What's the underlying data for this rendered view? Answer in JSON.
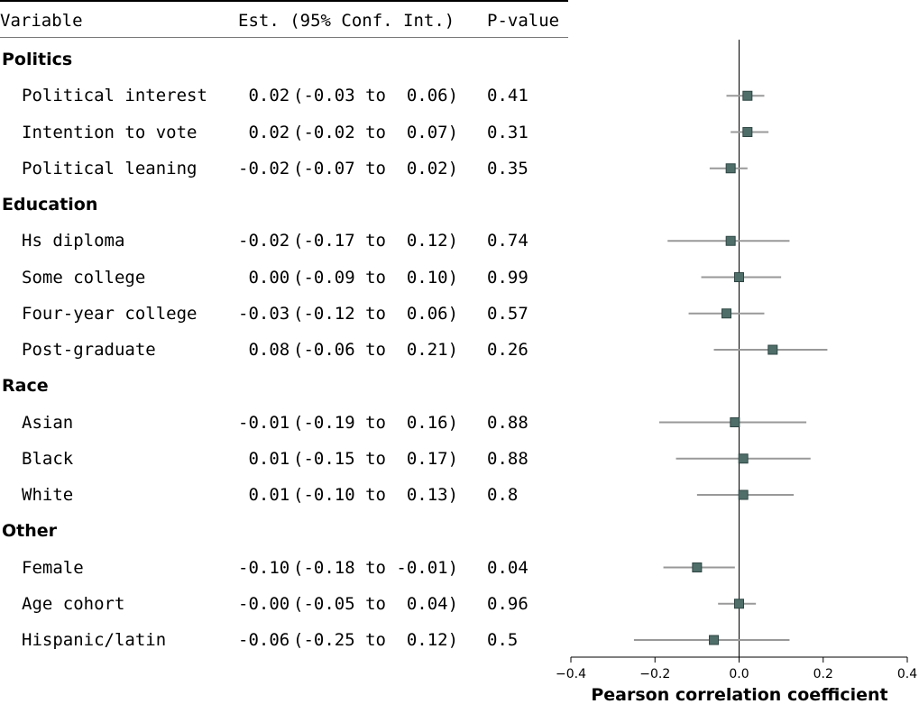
{
  "table": {
    "headers": {
      "variable": "Variable",
      "estimate": "Est. (95% Conf. Int.)",
      "pvalue": "P-value"
    },
    "rows": [
      {
        "type": "group",
        "label": "Politics"
      },
      {
        "type": "item",
        "label": "Political interest",
        "est": " 0.02",
        "ci": "(-0.03 to  0.06)",
        "p": "0.41"
      },
      {
        "type": "item",
        "label": "Intention to vote",
        "est": " 0.02",
        "ci": "(-0.02 to  0.07)",
        "p": "0.31"
      },
      {
        "type": "item",
        "label": "Political leaning",
        "est": "-0.02",
        "ci": "(-0.07 to  0.02)",
        "p": "0.35"
      },
      {
        "type": "group",
        "label": "Education"
      },
      {
        "type": "item",
        "label": "Hs diploma",
        "est": "-0.02",
        "ci": "(-0.17 to  0.12)",
        "p": "0.74"
      },
      {
        "type": "item",
        "label": "Some college",
        "est": " 0.00",
        "ci": "(-0.09 to  0.10)",
        "p": "0.99"
      },
      {
        "type": "item",
        "label": "Four-year college",
        "est": "-0.03",
        "ci": "(-0.12 to  0.06)",
        "p": "0.57"
      },
      {
        "type": "item",
        "label": "Post-graduate",
        "est": " 0.08",
        "ci": "(-0.06 to  0.21)",
        "p": "0.26"
      },
      {
        "type": "group",
        "label": "Race"
      },
      {
        "type": "item",
        "label": "Asian",
        "est": "-0.01",
        "ci": "(-0.19 to  0.16)",
        "p": "0.88"
      },
      {
        "type": "item",
        "label": "Black",
        "est": " 0.01",
        "ci": "(-0.15 to  0.17)",
        "p": "0.88"
      },
      {
        "type": "item",
        "label": "White",
        "est": " 0.01",
        "ci": "(-0.10 to  0.13)",
        "p": "0.8"
      },
      {
        "type": "group",
        "label": "Other"
      },
      {
        "type": "item",
        "label": "Female",
        "est": "-0.10",
        "ci": "(-0.18 to -0.01)",
        "p": "0.04"
      },
      {
        "type": "item",
        "label": "Age cohort",
        "est": "-0.00",
        "ci": "(-0.05 to  0.04)",
        "p": "0.96"
      },
      {
        "type": "item",
        "label": "Hispanic/latin",
        "est": "-0.06",
        "ci": "(-0.25 to  0.12)",
        "p": "0.5"
      }
    ]
  },
  "chart_data": {
    "type": "scatter",
    "subtype": "forest",
    "title": "",
    "xlabel": "Pearson correlation coefficient",
    "ylabel": "",
    "xlim": [
      -0.4,
      0.4
    ],
    "xticks": [
      -0.4,
      -0.2,
      0.0,
      0.2,
      0.4
    ],
    "xtick_labels": [
      "−0.4",
      "−0.2",
      "0.0",
      "0.2",
      "0.4"
    ],
    "reference_line": 0.0,
    "grid": false,
    "marker_color": "#4f6e6a",
    "ci_color": "#999999",
    "points": [
      {
        "label": "Political interest",
        "est": 0.02,
        "lo": -0.03,
        "hi": 0.06
      },
      {
        "label": "Intention to vote",
        "est": 0.02,
        "lo": -0.02,
        "hi": 0.07
      },
      {
        "label": "Political leaning",
        "est": -0.02,
        "lo": -0.07,
        "hi": 0.02
      },
      {
        "label": "Hs diploma",
        "est": -0.02,
        "lo": -0.17,
        "hi": 0.12
      },
      {
        "label": "Some college",
        "est": 0.0,
        "lo": -0.09,
        "hi": 0.1
      },
      {
        "label": "Four-year college",
        "est": -0.03,
        "lo": -0.12,
        "hi": 0.06
      },
      {
        "label": "Post-graduate",
        "est": 0.08,
        "lo": -0.06,
        "hi": 0.21
      },
      {
        "label": "Asian",
        "est": -0.01,
        "lo": -0.19,
        "hi": 0.16
      },
      {
        "label": "Black",
        "est": 0.01,
        "lo": -0.15,
        "hi": 0.17
      },
      {
        "label": "White",
        "est": 0.01,
        "lo": -0.1,
        "hi": 0.13
      },
      {
        "label": "Female",
        "est": -0.1,
        "lo": -0.18,
        "hi": -0.01
      },
      {
        "label": "Age cohort",
        "est": -0.0,
        "lo": -0.05,
        "hi": 0.04
      },
      {
        "label": "Hispanic/latin",
        "est": -0.06,
        "lo": -0.25,
        "hi": 0.12
      }
    ]
  }
}
